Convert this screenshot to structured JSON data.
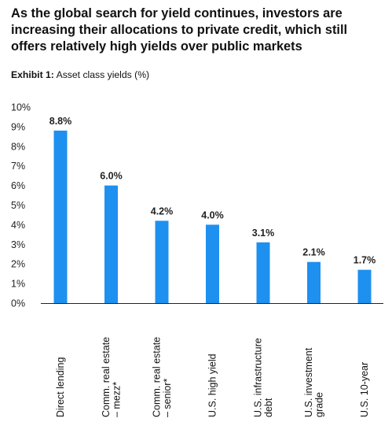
{
  "headline": "As the global search for yield continues, investors are increasing their allocations to private credit, which still offers relatively high yields over public markets",
  "exhibit_label": "Exhibit 1:",
  "exhibit_title": "Asset class yields (%)",
  "colors": {
    "bar": "#1e90f0",
    "axis": "#222222",
    "text": "#111111"
  },
  "chart_data": {
    "type": "bar",
    "title": "Asset class yields (%)",
    "ylim": [
      0,
      10
    ],
    "yticks": [
      "0%",
      "1%",
      "2%",
      "3%",
      "4%",
      "5%",
      "6%",
      "7%",
      "8%",
      "9%",
      "10%"
    ],
    "grid": false,
    "categories": [
      [
        "Direct lending"
      ],
      [
        "Comm. real estate",
        "– mezz*"
      ],
      [
        "Comm. real estate",
        "– senior*"
      ],
      [
        "U.S. high yield"
      ],
      [
        "U.S. infrastructure",
        "debt"
      ],
      [
        "U.S. investment",
        "grade"
      ],
      [
        "U.S. 10-year"
      ]
    ],
    "values": [
      8.8,
      6.0,
      4.2,
      4.0,
      3.1,
      2.1,
      1.7
    ],
    "data_labels": [
      "8.8%",
      "6.0%",
      "4.2%",
      "4.0%",
      "3.1%",
      "2.1%",
      "1.7%"
    ]
  }
}
